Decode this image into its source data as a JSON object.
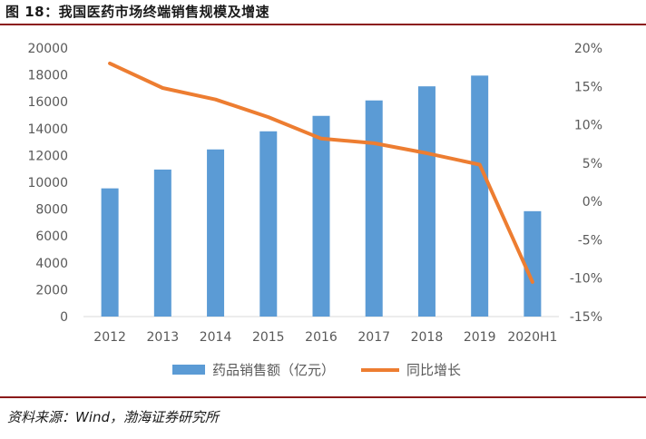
{
  "figure": {
    "title": "图 18：我国医药市场终端销售规模及增速",
    "source": "资料来源：Wind，渤海证券研究所"
  },
  "colors": {
    "bar": "#5b9bd5",
    "line": "#ed7d31",
    "rule": "#8b1a1a",
    "axis": "#d9d9d9",
    "text": "#595959"
  },
  "chart_data": {
    "type": "bar+line",
    "title": "",
    "categories": [
      "2012",
      "2013",
      "2014",
      "2015",
      "2016",
      "2017",
      "2018",
      "2019",
      "2020H1"
    ],
    "series": [
      {
        "name": "药品销售额（亿元）",
        "type": "bar",
        "axis": "left",
        "values": [
          9550,
          10950,
          12450,
          13800,
          14950,
          16100,
          17150,
          17950,
          7850
        ]
      },
      {
        "name": "同比增长",
        "type": "line",
        "axis": "right",
        "unit": "%",
        "values": [
          18.0,
          14.8,
          13.3,
          11.0,
          8.2,
          7.6,
          6.3,
          4.8,
          -10.5
        ]
      }
    ],
    "y_left": {
      "min": 0,
      "max": 20000,
      "step": 2000,
      "tick_labels": [
        "0",
        "2000",
        "4000",
        "6000",
        "8000",
        "10000",
        "12000",
        "14000",
        "16000",
        "18000",
        "20000"
      ]
    },
    "y_right": {
      "min": -15,
      "max": 20,
      "step": 5,
      "tick_labels": [
        "-15%",
        "-10%",
        "-5%",
        "0%",
        "5%",
        "10%",
        "15%",
        "20%"
      ]
    },
    "grid": false,
    "legend_position": "bottom"
  }
}
